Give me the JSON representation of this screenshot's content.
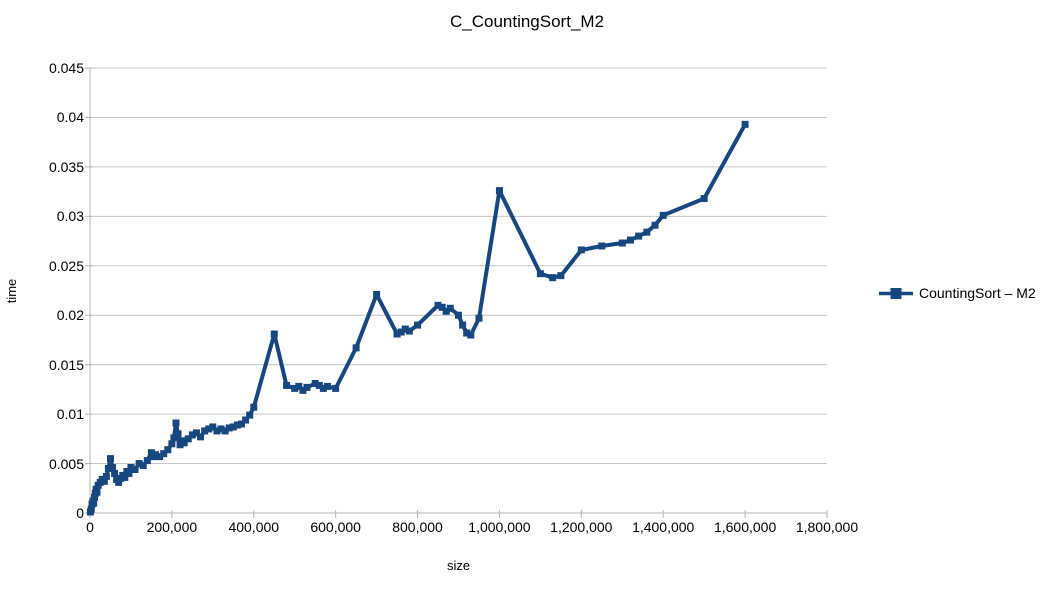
{
  "title": "C_CountingSort_M2",
  "legend": {
    "label": "CountingSort – M2"
  },
  "colors": {
    "series": "#17477E",
    "gridline": "#c6c6c6",
    "axis": "#b3b3b3",
    "text": "#000000",
    "background": "#ffffff"
  },
  "chart_data": {
    "type": "line",
    "title": "C_CountingSort_M2",
    "xlabel": "size",
    "ylabel": "time",
    "xlim": [
      0,
      1800000
    ],
    "ylim": [
      0,
      0.045
    ],
    "grid": "horizontal",
    "legend_position": "right",
    "marker": "square",
    "xticks": {
      "values": [
        0,
        200000,
        400000,
        600000,
        800000,
        1000000,
        1200000,
        1400000,
        1600000,
        1800000
      ],
      "labels": [
        "0",
        "200,000",
        "400,000",
        "600,000",
        "800,000",
        "1,000,000",
        "1,200,000",
        "1,400,000",
        "1,600,000",
        "1,800,000"
      ]
    },
    "yticks": {
      "values": [
        0,
        0.005,
        0.01,
        0.015,
        0.02,
        0.025,
        0.03,
        0.035,
        0.04,
        0.045
      ],
      "labels": [
        "0",
        "0.005",
        "0.01",
        "0.015",
        "0.02",
        "0.025",
        "0.03",
        "0.035",
        "0.04",
        "0.045"
      ]
    },
    "series": [
      {
        "name": "CountingSort – M2",
        "color": "#17477E",
        "points": [
          [
            1000,
            0.0001
          ],
          [
            3000,
            0.0004
          ],
          [
            5000,
            0.0009
          ],
          [
            7000,
            0.0012
          ],
          [
            9000,
            0.001
          ],
          [
            11000,
            0.0016
          ],
          [
            13000,
            0.002
          ],
          [
            15000,
            0.0024
          ],
          [
            17000,
            0.0021
          ],
          [
            20000,
            0.0028
          ],
          [
            25000,
            0.0031
          ],
          [
            30000,
            0.0034
          ],
          [
            35000,
            0.0032
          ],
          [
            40000,
            0.0037
          ],
          [
            45000,
            0.0045
          ],
          [
            50000,
            0.0055
          ],
          [
            55000,
            0.0046
          ],
          [
            60000,
            0.004
          ],
          [
            65000,
            0.0034
          ],
          [
            70000,
            0.0031
          ],
          [
            75000,
            0.0035
          ],
          [
            80000,
            0.0038
          ],
          [
            85000,
            0.0036
          ],
          [
            90000,
            0.0042
          ],
          [
            95000,
            0.004
          ],
          [
            100000,
            0.0046
          ],
          [
            110000,
            0.0044
          ],
          [
            120000,
            0.005
          ],
          [
            130000,
            0.0048
          ],
          [
            140000,
            0.0053
          ],
          [
            150000,
            0.0061
          ],
          [
            155000,
            0.0057
          ],
          [
            160000,
            0.0059
          ],
          [
            170000,
            0.0057
          ],
          [
            180000,
            0.006
          ],
          [
            190000,
            0.0064
          ],
          [
            200000,
            0.007
          ],
          [
            205000,
            0.0076
          ],
          [
            210000,
            0.0091
          ],
          [
            215000,
            0.008
          ],
          [
            220000,
            0.0069
          ],
          [
            225000,
            0.0073
          ],
          [
            230000,
            0.0071
          ],
          [
            240000,
            0.0075
          ],
          [
            250000,
            0.0079
          ],
          [
            260000,
            0.0081
          ],
          [
            270000,
            0.0077
          ],
          [
            280000,
            0.0083
          ],
          [
            290000,
            0.0085
          ],
          [
            300000,
            0.0087
          ],
          [
            310000,
            0.0083
          ],
          [
            320000,
            0.0085
          ],
          [
            330000,
            0.0083
          ],
          [
            340000,
            0.0086
          ],
          [
            350000,
            0.0087
          ],
          [
            360000,
            0.0089
          ],
          [
            370000,
            0.009
          ],
          [
            380000,
            0.0094
          ],
          [
            390000,
            0.0099
          ],
          [
            400000,
            0.0107
          ],
          [
            450000,
            0.0181
          ],
          [
            480000,
            0.0129
          ],
          [
            500000,
            0.0126
          ],
          [
            510000,
            0.0128
          ],
          [
            520000,
            0.0124
          ],
          [
            530000,
            0.0127
          ],
          [
            550000,
            0.0131
          ],
          [
            560000,
            0.0129
          ],
          [
            570000,
            0.0126
          ],
          [
            580000,
            0.0128
          ],
          [
            600000,
            0.0126
          ],
          [
            650000,
            0.0167
          ],
          [
            700000,
            0.0221
          ],
          [
            750000,
            0.0181
          ],
          [
            760000,
            0.0183
          ],
          [
            770000,
            0.0186
          ],
          [
            780000,
            0.0184
          ],
          [
            800000,
            0.019
          ],
          [
            850000,
            0.021
          ],
          [
            860000,
            0.0208
          ],
          [
            870000,
            0.0204
          ],
          [
            880000,
            0.0207
          ],
          [
            900000,
            0.02
          ],
          [
            910000,
            0.019
          ],
          [
            920000,
            0.0182
          ],
          [
            930000,
            0.018
          ],
          [
            950000,
            0.0197
          ],
          [
            1000000,
            0.0326
          ],
          [
            1100000,
            0.0242
          ],
          [
            1130000,
            0.0238
          ],
          [
            1150000,
            0.024
          ],
          [
            1200000,
            0.0266
          ],
          [
            1250000,
            0.027
          ],
          [
            1300000,
            0.0273
          ],
          [
            1320000,
            0.0276
          ],
          [
            1340000,
            0.028
          ],
          [
            1360000,
            0.0284
          ],
          [
            1380000,
            0.0291
          ],
          [
            1400000,
            0.0301
          ],
          [
            1500000,
            0.0318
          ],
          [
            1600000,
            0.0393
          ]
        ]
      }
    ]
  }
}
